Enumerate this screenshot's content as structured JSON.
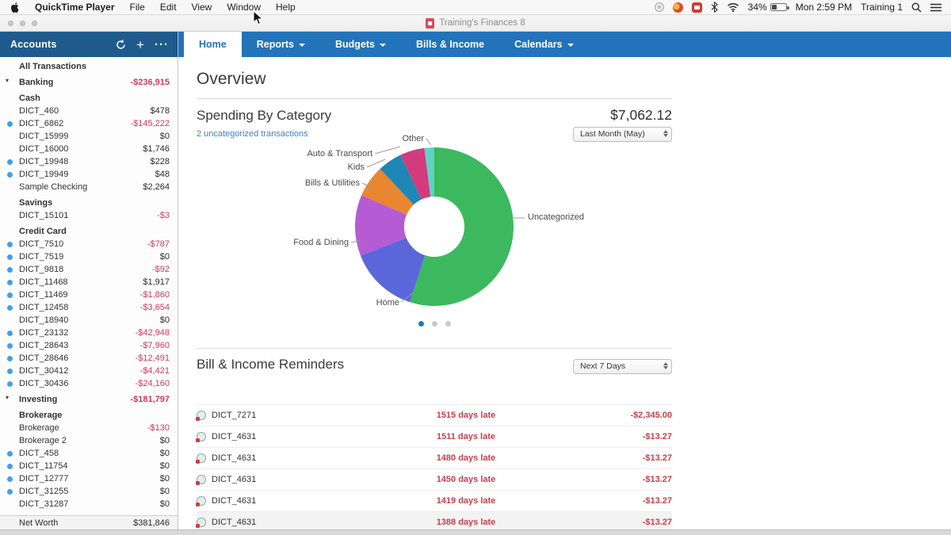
{
  "menu_bar": {
    "app_name": "QuickTime Player",
    "items": [
      "File",
      "Edit",
      "View",
      "Window",
      "Help"
    ],
    "status": {
      "battery_pct": "34%",
      "time": "Mon 2:59 PM",
      "account": "Training 1"
    }
  },
  "window": {
    "title": "Training's Finances 8"
  },
  "nav": {
    "tabs": [
      {
        "label": "Home",
        "active": true,
        "caret": false
      },
      {
        "label": "Reports",
        "active": false,
        "caret": true
      },
      {
        "label": "Budgets",
        "active": false,
        "caret": true
      },
      {
        "label": "Bills & Income",
        "active": false,
        "caret": false
      },
      {
        "label": "Calendars",
        "active": false,
        "caret": true
      }
    ]
  },
  "sidebar": {
    "title": "Accounts",
    "icons": {
      "add": "+",
      "more": "···"
    },
    "rows": [
      {
        "kind": "item",
        "label": "All Transactions",
        "bold": true
      },
      {
        "kind": "group",
        "label": "Banking",
        "amount": "-$236,915",
        "neg": true
      },
      {
        "kind": "subheader",
        "label": "Cash"
      },
      {
        "kind": "account",
        "label": "DICT_460",
        "amount": "$478"
      },
      {
        "kind": "account",
        "label": "DICT_6862",
        "amount": "-$145,222",
        "neg": true,
        "dot": true
      },
      {
        "kind": "account",
        "label": "DICT_15999",
        "amount": "$0"
      },
      {
        "kind": "account",
        "label": "DICT_16000",
        "amount": "$1,746"
      },
      {
        "kind": "account",
        "label": "DICT_19948",
        "amount": "$228",
        "dot": true
      },
      {
        "kind": "account",
        "label": "DICT_19949",
        "amount": "$48",
        "dot": true
      },
      {
        "kind": "account",
        "label": "Sample Checking",
        "amount": "$2,264"
      },
      {
        "kind": "subheader",
        "label": "Savings"
      },
      {
        "kind": "account",
        "label": "DICT_15101",
        "amount": "-$3",
        "neg": true
      },
      {
        "kind": "subheader",
        "label": "Credit Card"
      },
      {
        "kind": "account",
        "label": "DICT_7510",
        "amount": "-$787",
        "neg": true,
        "dot": true
      },
      {
        "kind": "account",
        "label": "DICT_7519",
        "amount": "$0",
        "dot": true
      },
      {
        "kind": "account",
        "label": "DICT_9818",
        "amount": "-$92",
        "neg": true,
        "dot": true
      },
      {
        "kind": "account",
        "label": "DICT_11468",
        "amount": "$1,917",
        "dot": true
      },
      {
        "kind": "account",
        "label": "DICT_11469",
        "amount": "-$1,860",
        "neg": true,
        "dot": true
      },
      {
        "kind": "account",
        "label": "DICT_12458",
        "amount": "-$3,654",
        "neg": true,
        "dot": true
      },
      {
        "kind": "account",
        "label": "DICT_18940",
        "amount": "$0"
      },
      {
        "kind": "account",
        "label": "DICT_23132",
        "amount": "-$42,948",
        "neg": true,
        "dot": true
      },
      {
        "kind": "account",
        "label": "DICT_28643",
        "amount": "-$7,960",
        "neg": true,
        "dot": true
      },
      {
        "kind": "account",
        "label": "DICT_28646",
        "amount": "-$12,491",
        "neg": true,
        "dot": true
      },
      {
        "kind": "account",
        "label": "DICT_30412",
        "amount": "-$4,421",
        "neg": true,
        "dot": true
      },
      {
        "kind": "account",
        "label": "DICT_30436",
        "amount": "-$24,160",
        "neg": true,
        "dot": true
      },
      {
        "kind": "group",
        "label": "Investing",
        "amount": "-$181,797",
        "neg": true
      },
      {
        "kind": "subheader",
        "label": "Brokerage"
      },
      {
        "kind": "account",
        "label": "Brokerage",
        "amount": "-$130",
        "neg": true
      },
      {
        "kind": "account",
        "label": "Brokerage 2",
        "amount": "$0"
      },
      {
        "kind": "account",
        "label": "DICT_458",
        "amount": "$0",
        "dot": true
      },
      {
        "kind": "account",
        "label": "DICT_11754",
        "amount": "$0",
        "dot": true
      },
      {
        "kind": "account",
        "label": "DICT_12777",
        "amount": "$0",
        "dot": true
      },
      {
        "kind": "account",
        "label": "DICT_31255",
        "amount": "$0",
        "dot": true
      },
      {
        "kind": "account",
        "label": "DICT_31287",
        "amount": "$0"
      }
    ],
    "footer": {
      "label": "Net Worth",
      "value": "$381,846"
    }
  },
  "main": {
    "page_title": "Overview",
    "spending": {
      "title": "Spending By Category",
      "total": "$7,062.12",
      "link": "2 uncategorized transactions",
      "period": "Last Month (May)"
    },
    "reminders": {
      "title": "Bill & Income Reminders",
      "period": "Next 7 Days",
      "rows": [
        {
          "name": "DICT_7271",
          "status": "1515 days late",
          "amount": "-$2,345.00"
        },
        {
          "name": "DICT_4631",
          "status": "1511 days late",
          "amount": "-$13.27"
        },
        {
          "name": "DICT_4631",
          "status": "1480 days late",
          "amount": "-$13.27"
        },
        {
          "name": "DICT_4631",
          "status": "1450 days late",
          "amount": "-$13.27"
        },
        {
          "name": "DICT_4631",
          "status": "1419 days late",
          "amount": "-$13.27"
        },
        {
          "name": "DICT_4631",
          "status": "1388 days late",
          "amount": "-$13.27"
        }
      ]
    }
  },
  "chart_data": {
    "type": "pie",
    "donut": true,
    "title": "Spending By Category",
    "total": "$7,062.12",
    "period": "Last Month (May)",
    "legend_position": "callout-labels",
    "slices": [
      {
        "label": "Uncategorized",
        "pct": 55,
        "color": "#3cb95e"
      },
      {
        "label": "Home",
        "pct": 14,
        "color": "#5a66d9"
      },
      {
        "label": "Food & Dining",
        "pct": 12.5,
        "color": "#b55cd4"
      },
      {
        "label": "Bills & Utilities",
        "pct": 6.5,
        "color": "#e8872f"
      },
      {
        "label": "Kids",
        "pct": 5,
        "color": "#1f87b5"
      },
      {
        "label": "Auto & Transport",
        "pct": 5,
        "color": "#d23b7e"
      },
      {
        "label": "Other",
        "pct": 2,
        "color": "#5ed3c2"
      }
    ],
    "pagination": {
      "pages": 3,
      "active": 0
    }
  },
  "colors": {
    "nav_blue": "#2273b9",
    "sidebar_header_blue": "#1f5a8d",
    "negative_red": "#cf3a5a",
    "reminder_red": "#c5414d",
    "link_blue": "#3f7fc1",
    "account_dot_blue": "#41a0e8"
  }
}
